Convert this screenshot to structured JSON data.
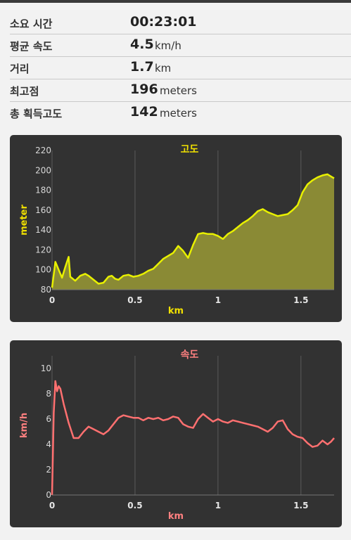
{
  "stats": [
    {
      "label": "소요 시간",
      "value": "00:23:01",
      "unit": ""
    },
    {
      "label": "평균 속도",
      "value": "4.5",
      "unit": "km/h"
    },
    {
      "label": "거리",
      "value": "1.7",
      "unit": "km"
    },
    {
      "label": "최고점",
      "value": "196",
      "unit": "meters"
    },
    {
      "label": "총 획득고도",
      "value": "142",
      "unit": "meters"
    }
  ],
  "chart_data": [
    {
      "type": "area",
      "title": "고도",
      "xlabel": "km",
      "ylabel": "meter",
      "xlim": [
        0,
        1.7
      ],
      "ylim": [
        80,
        220
      ],
      "x_ticks": [
        "0",
        "0.5",
        "1",
        "1.5"
      ],
      "y_ticks": [
        "80",
        "100",
        "120",
        "140",
        "160",
        "180",
        "200",
        "220"
      ],
      "colors": {
        "line": "#e8f000",
        "fill": "#8a8a35",
        "title": "#f0e000"
      },
      "x": [
        0,
        0.02,
        0.04,
        0.06,
        0.08,
        0.1,
        0.11,
        0.14,
        0.17,
        0.2,
        0.22,
        0.25,
        0.28,
        0.31,
        0.34,
        0.36,
        0.38,
        0.4,
        0.43,
        0.46,
        0.49,
        0.52,
        0.55,
        0.58,
        0.61,
        0.64,
        0.67,
        0.7,
        0.73,
        0.76,
        0.79,
        0.82,
        0.85,
        0.88,
        0.91,
        0.94,
        0.97,
        1.0,
        1.03,
        1.06,
        1.09,
        1.12,
        1.15,
        1.18,
        1.21,
        1.24,
        1.27,
        1.3,
        1.33,
        1.36,
        1.39,
        1.42,
        1.45,
        1.48,
        1.51,
        1.54,
        1.57,
        1.6,
        1.63,
        1.66,
        1.68,
        1.7
      ],
      "values": [
        82,
        108,
        100,
        92,
        103,
        113,
        93,
        89,
        94,
        96,
        94,
        90,
        86,
        87,
        93,
        94,
        91,
        90,
        94,
        95,
        93,
        94,
        96,
        99,
        101,
        106,
        111,
        114,
        117,
        124,
        119,
        112,
        125,
        136,
        137,
        136,
        136,
        134,
        131,
        136,
        139,
        143,
        147,
        150,
        154,
        159,
        161,
        158,
        156,
        154,
        155,
        156,
        160,
        165,
        178,
        186,
        190,
        193,
        195,
        196,
        194,
        192
      ]
    },
    {
      "type": "line",
      "title": "속도",
      "xlabel": "km",
      "ylabel": "km/h",
      "xlim": [
        0,
        1.7
      ],
      "ylim": [
        0,
        11
      ],
      "x_ticks": [
        "0",
        "0.5",
        "1",
        "1.5"
      ],
      "y_ticks": [
        "0",
        "2",
        "4",
        "6",
        "8",
        "10"
      ],
      "colors": {
        "line": "#ff7070",
        "title": "#ff8080"
      },
      "x": [
        0,
        0.01,
        0.02,
        0.03,
        0.04,
        0.05,
        0.07,
        0.1,
        0.13,
        0.16,
        0.19,
        0.22,
        0.25,
        0.28,
        0.31,
        0.34,
        0.37,
        0.4,
        0.43,
        0.46,
        0.49,
        0.52,
        0.55,
        0.58,
        0.61,
        0.64,
        0.67,
        0.7,
        0.73,
        0.76,
        0.79,
        0.82,
        0.85,
        0.88,
        0.91,
        0.94,
        0.97,
        1.0,
        1.03,
        1.06,
        1.09,
        1.12,
        1.15,
        1.18,
        1.21,
        1.24,
        1.27,
        1.3,
        1.33,
        1.36,
        1.39,
        1.42,
        1.45,
        1.48,
        1.51,
        1.54,
        1.57,
        1.6,
        1.63,
        1.66,
        1.68,
        1.7
      ],
      "values": [
        0,
        6.5,
        9,
        8.2,
        8.6,
        8.4,
        7.2,
        5.7,
        4.5,
        4.5,
        5,
        5.4,
        5.2,
        5,
        4.8,
        5.1,
        5.6,
        6.1,
        6.3,
        6.2,
        6.1,
        6.1,
        5.9,
        6.1,
        6.0,
        6.1,
        5.9,
        6.0,
        6.2,
        6.1,
        5.6,
        5.4,
        5.3,
        6.0,
        6.4,
        6.1,
        5.8,
        6.0,
        5.8,
        5.7,
        5.9,
        5.8,
        5.7,
        5.6,
        5.5,
        5.4,
        5.2,
        5.0,
        5.3,
        5.8,
        5.9,
        5.2,
        4.8,
        4.6,
        4.5,
        4.1,
        3.8,
        3.9,
        4.3,
        4.0,
        4.2,
        4.5
      ]
    }
  ]
}
